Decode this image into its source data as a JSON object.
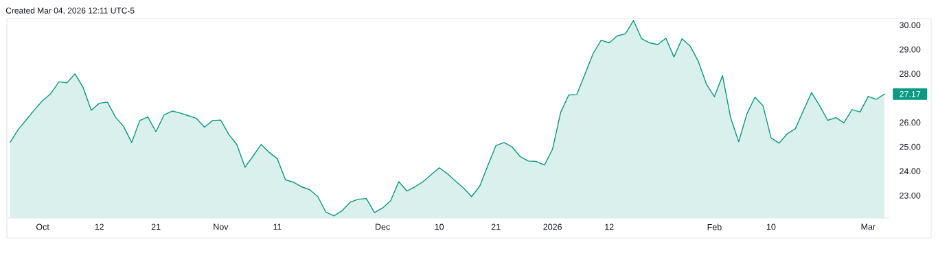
{
  "chart_data": {
    "type": "area",
    "categories": [
      null,
      null,
      null,
      null,
      "Oct",
      null,
      null,
      null,
      null,
      null,
      null,
      "12",
      null,
      null,
      null,
      null,
      null,
      null,
      "21",
      null,
      null,
      null,
      null,
      null,
      null,
      null,
      "Nov",
      null,
      null,
      null,
      null,
      null,
      null,
      "11",
      null,
      null,
      null,
      null,
      null,
      null,
      null,
      null,
      null,
      null,
      null,
      null,
      "Dec",
      null,
      null,
      null,
      null,
      null,
      null,
      "10",
      null,
      null,
      null,
      null,
      null,
      null,
      "21",
      null,
      null,
      null,
      null,
      null,
      null,
      "2026",
      null,
      null,
      null,
      null,
      null,
      null,
      "12",
      null,
      null,
      null,
      null,
      null,
      null,
      null,
      null,
      null,
      null,
      null,
      null,
      "Feb",
      null,
      null,
      null,
      null,
      null,
      null,
      "10",
      null,
      null,
      null,
      null,
      null,
      null,
      null,
      null,
      null,
      null,
      null,
      "Mar",
      null,
      null
    ],
    "values": [
      25.19,
      25.72,
      26.12,
      26.53,
      26.9,
      27.18,
      27.67,
      27.63,
      28.0,
      27.44,
      26.5,
      26.79,
      26.84,
      26.22,
      25.84,
      25.18,
      26.08,
      26.23,
      25.62,
      26.31,
      26.47,
      26.39,
      26.28,
      26.17,
      25.81,
      26.08,
      26.1,
      25.51,
      25.09,
      24.16,
      24.62,
      25.1,
      24.77,
      24.51,
      23.65,
      23.55,
      23.36,
      23.24,
      22.96,
      22.32,
      22.17,
      22.38,
      22.73,
      22.85,
      22.88,
      22.3,
      22.49,
      22.79,
      23.57,
      23.19,
      23.36,
      23.57,
      23.86,
      24.14,
      23.9,
      23.6,
      23.31,
      22.96,
      23.38,
      24.23,
      25.05,
      25.18,
      25.0,
      24.6,
      24.42,
      24.4,
      24.25,
      24.91,
      26.41,
      27.13,
      27.15,
      27.98,
      28.82,
      29.38,
      29.27,
      29.56,
      29.64,
      30.19,
      29.44,
      29.27,
      29.2,
      29.46,
      28.69,
      29.44,
      29.14,
      28.52,
      27.58,
      27.06,
      27.93,
      26.2,
      25.21,
      26.34,
      27.04,
      26.69,
      25.37,
      25.15,
      25.54,
      25.75,
      26.5,
      27.23,
      26.69,
      26.09,
      26.2,
      25.99,
      26.53,
      26.43,
      27.07,
      26.95,
      27.17
    ],
    "color": "#089981",
    "ylim": [
      22.08,
      30.27
    ],
    "yticks": [
      {
        "value": 23,
        "label": "23.00"
      },
      {
        "value": 24,
        "label": "24.00"
      },
      {
        "value": 25,
        "label": "25.00"
      },
      {
        "value": 26,
        "label": "26.00"
      },
      {
        "value": 28,
        "label": "28.00"
      },
      {
        "value": 29,
        "label": "29.00"
      },
      {
        "value": 30,
        "label": "30.00"
      }
    ],
    "annotations": [
      "Created Mar 04, 2026 12:11 UTC-5",
      "27.17"
    ]
  }
}
